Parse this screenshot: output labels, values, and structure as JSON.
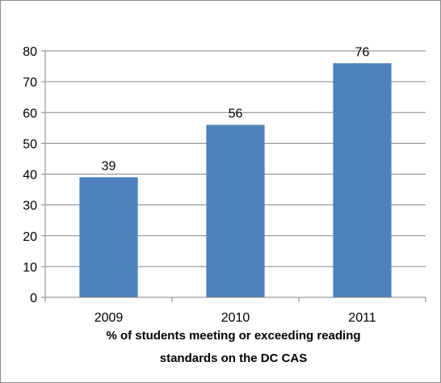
{
  "chart_data": {
    "type": "bar",
    "categories": [
      "2009",
      "2010",
      "2011"
    ],
    "values": [
      39,
      56,
      76
    ],
    "data_labels": [
      "39",
      "56",
      "76"
    ],
    "title": "",
    "xlabel_lines": [
      "% of students meeting or exceeding reading",
      "standards on the DC CAS"
    ],
    "ylabel": "",
    "ylim": [
      0,
      80
    ],
    "yticks": [
      0,
      10,
      20,
      30,
      40,
      50,
      60,
      70,
      80
    ],
    "grid": true,
    "legend": "none",
    "colors": {
      "bar": "#4F81BD",
      "gridline": "#868686",
      "axis": "#868686",
      "frame": "#8c8c8c"
    }
  }
}
